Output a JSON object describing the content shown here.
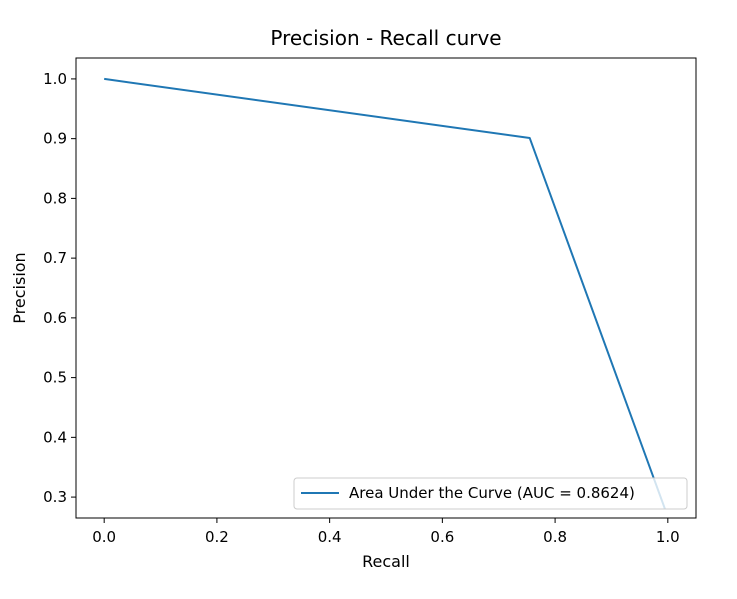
{
  "chart_data": {
    "type": "line",
    "title": "Precision - Recall curve",
    "xlabel": "Recall",
    "ylabel": "Precision",
    "xlim": [
      -0.05,
      1.05
    ],
    "ylim": [
      0.265,
      1.035
    ],
    "xticks": [
      0.0,
      0.2,
      0.4,
      0.6,
      0.8,
      1.0
    ],
    "xtick_labels": [
      "0.0",
      "0.2",
      "0.4",
      "0.6",
      "0.8",
      "1.0"
    ],
    "yticks": [
      0.3,
      0.4,
      0.5,
      0.6,
      0.7,
      0.8,
      0.9,
      1.0
    ],
    "ytick_labels": [
      "0.3",
      "0.4",
      "0.5",
      "0.6",
      "0.7",
      "0.8",
      "0.9",
      "1.0"
    ],
    "grid": false,
    "legend_position": "lower-right",
    "series": [
      {
        "name": "Area Under the Curve (AUC = 0.8624)",
        "color": "#1f77b4",
        "x": [
          0.0,
          0.755,
          0.995
        ],
        "y": [
          1.0,
          0.901,
          0.28
        ]
      }
    ]
  }
}
